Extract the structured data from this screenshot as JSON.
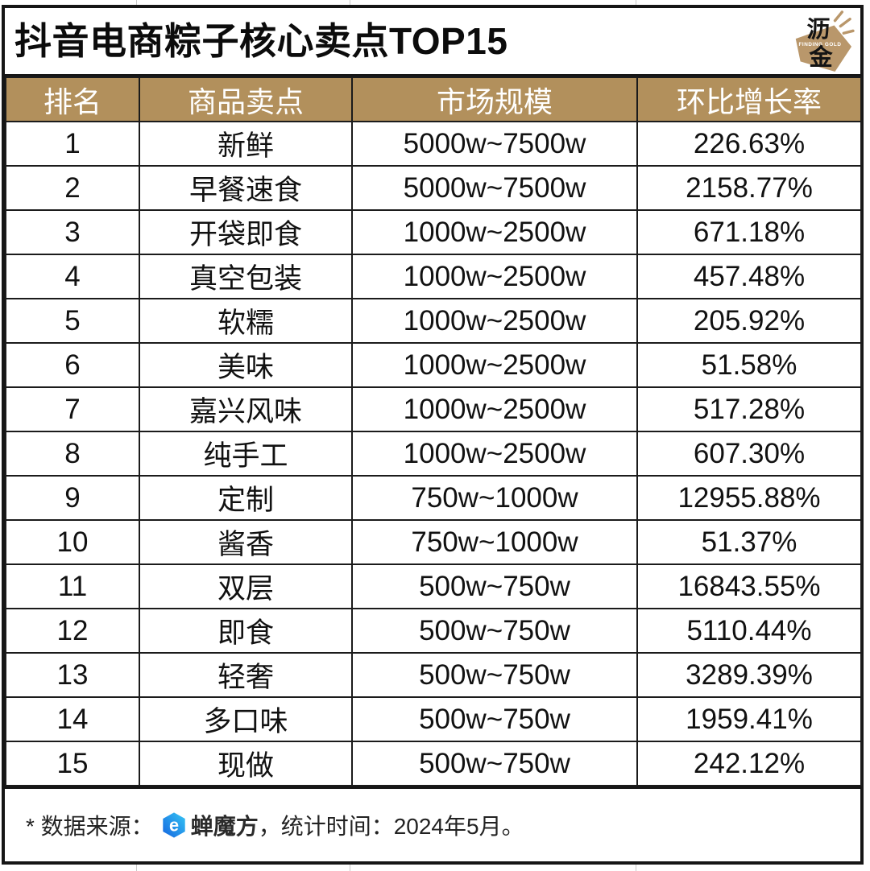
{
  "title": "抖音电商粽子核心卖点TOP15",
  "brand_logo": {
    "char_top": "沥",
    "char_bottom": "金",
    "tagline": "FINDING GOLD",
    "color": "#B9976B"
  },
  "colors": {
    "header_bg": "#B2905C",
    "header_text": "#FFFFFF",
    "border": "#1B1B1B",
    "source_logo_blue_dark": "#1565E0",
    "source_logo_blue_light": "#36C6F4"
  },
  "table": {
    "columns": [
      "排名",
      "商品卖点",
      "市场规模",
      "环比增长率"
    ],
    "rows": [
      {
        "rank": "1",
        "selling_point": "新鲜",
        "market_size": "5000w~7500w",
        "growth": "226.63%"
      },
      {
        "rank": "2",
        "selling_point": "早餐速食",
        "market_size": "5000w~7500w",
        "growth": "2158.77%"
      },
      {
        "rank": "3",
        "selling_point": "开袋即食",
        "market_size": "1000w~2500w",
        "growth": "671.18%"
      },
      {
        "rank": "4",
        "selling_point": "真空包装",
        "market_size": "1000w~2500w",
        "growth": "457.48%"
      },
      {
        "rank": "5",
        "selling_point": "软糯",
        "market_size": "1000w~2500w",
        "growth": "205.92%"
      },
      {
        "rank": "6",
        "selling_point": "美味",
        "market_size": "1000w~2500w",
        "growth": "51.58%"
      },
      {
        "rank": "7",
        "selling_point": "嘉兴风味",
        "market_size": "1000w~2500w",
        "growth": "517.28%"
      },
      {
        "rank": "8",
        "selling_point": "纯手工",
        "market_size": "1000w~2500w",
        "growth": "607.30%"
      },
      {
        "rank": "9",
        "selling_point": "定制",
        "market_size": "750w~1000w",
        "growth": "12955.88%"
      },
      {
        "rank": "10",
        "selling_point": "酱香",
        "market_size": "750w~1000w",
        "growth": "51.37%"
      },
      {
        "rank": "11",
        "selling_point": "双层",
        "market_size": "500w~750w",
        "growth": "16843.55%"
      },
      {
        "rank": "12",
        "selling_point": "即食",
        "market_size": "500w~750w",
        "growth": "5110.44%"
      },
      {
        "rank": "13",
        "selling_point": "轻奢",
        "market_size": "500w~750w",
        "growth": "3289.39%"
      },
      {
        "rank": "14",
        "selling_point": "多口味",
        "market_size": "500w~750w",
        "growth": "1959.41%"
      },
      {
        "rank": "15",
        "selling_point": "现做",
        "market_size": "500w~750w",
        "growth": "242.12%"
      }
    ]
  },
  "footer": {
    "prefix": "* 数据来源：",
    "source_name": "蝉魔方",
    "suffix": "，统计时间：2024年5月。"
  },
  "chart_data": {
    "type": "table",
    "title": "抖音电商粽子核心卖点TOP15",
    "columns": [
      "排名",
      "商品卖点",
      "市场规模",
      "环比增长率"
    ],
    "rows": [
      [
        "1",
        "新鲜",
        "5000w~7500w",
        "226.63%"
      ],
      [
        "2",
        "早餐速食",
        "5000w~7500w",
        "2158.77%"
      ],
      [
        "3",
        "开袋即食",
        "1000w~2500w",
        "671.18%"
      ],
      [
        "4",
        "真空包装",
        "1000w~2500w",
        "457.48%"
      ],
      [
        "5",
        "软糯",
        "1000w~2500w",
        "205.92%"
      ],
      [
        "6",
        "美味",
        "1000w~2500w",
        "51.58%"
      ],
      [
        "7",
        "嘉兴风味",
        "1000w~2500w",
        "517.28%"
      ],
      [
        "8",
        "纯手工",
        "1000w~2500w",
        "607.30%"
      ],
      [
        "9",
        "定制",
        "750w~1000w",
        "12955.88%"
      ],
      [
        "10",
        "酱香",
        "750w~1000w",
        "51.37%"
      ],
      [
        "11",
        "双层",
        "500w~750w",
        "16843.55%"
      ],
      [
        "12",
        "即食",
        "500w~750w",
        "5110.44%"
      ],
      [
        "13",
        "轻奢",
        "500w~750w",
        "3289.39%"
      ],
      [
        "14",
        "多口味",
        "500w~750w",
        "1959.41%"
      ],
      [
        "15",
        "现做",
        "500w~750w",
        "242.12%"
      ]
    ],
    "growth_values_pct": [
      226.63,
      2158.77,
      671.18,
      457.48,
      205.92,
      51.58,
      517.28,
      607.3,
      12955.88,
      51.37,
      16843.55,
      5110.44,
      3289.39,
      1959.41,
      242.12
    ],
    "source_note": "* 数据来源：蝉魔方，统计时间：2024年5月。"
  }
}
